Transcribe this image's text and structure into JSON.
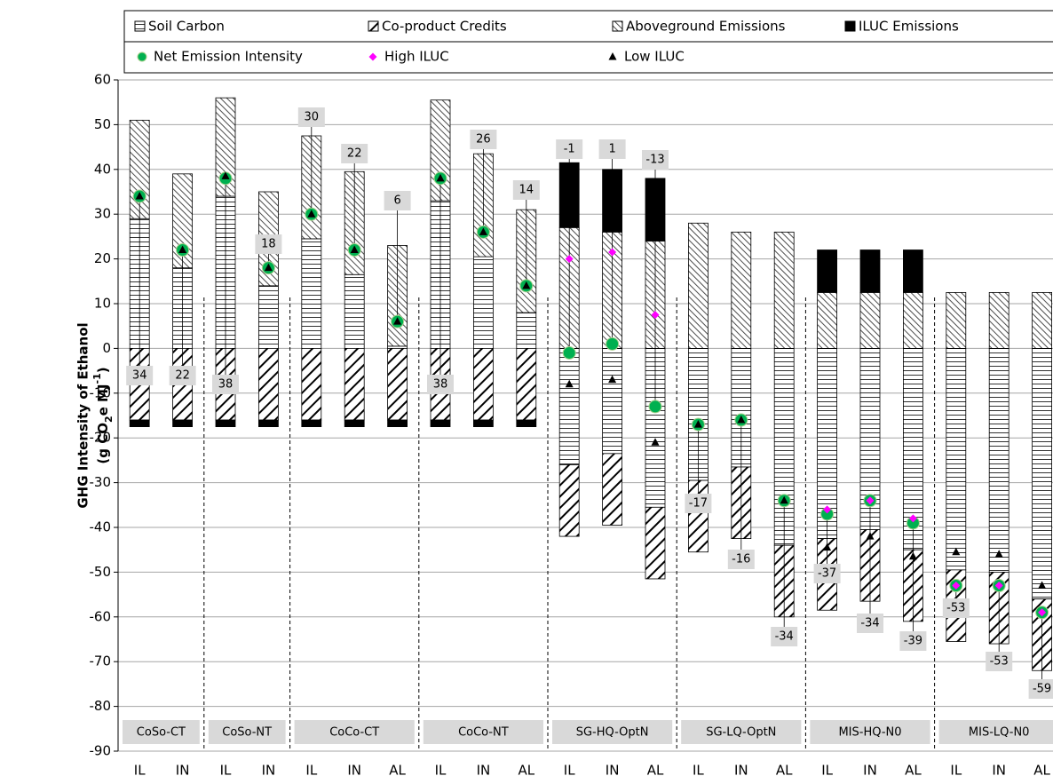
{
  "chart_data": {
    "type": "bar",
    "stacked": true,
    "y_label": {
      "line1": "GHG Intensity of Ethanol",
      "line2": [
        "(g CO",
        "2",
        "e MJ",
        "-1",
        ")"
      ]
    },
    "categories": [
      "IL",
      "IN",
      "IL",
      "IN",
      "IL",
      "IN",
      "AL",
      "IL",
      "IN",
      "AL",
      "IL",
      "IN",
      "AL",
      "IL",
      "IN",
      "AL",
      "IL",
      "IN",
      "AL",
      "IL",
      "IN",
      "AL"
    ],
    "groups": [
      {
        "name": "CoSo-CT",
        "size": 2
      },
      {
        "name": "CoSo-NT",
        "size": 2
      },
      {
        "name": "CoCo-CT",
        "size": 3
      },
      {
        "name": "CoCo-NT",
        "size": 3
      },
      {
        "name": "SG-HQ-OptN",
        "size": 3
      },
      {
        "name": "SG-LQ-OptN",
        "size": 3
      },
      {
        "name": "MIS-HQ-N0",
        "size": 3
      },
      {
        "name": "MIS-LQ-N0",
        "size": 3
      }
    ],
    "series": [
      {
        "name": "Soil Carbon",
        "color": "#000000",
        "pattern": "horizontal",
        "values": [
          29,
          18,
          34,
          14,
          24.5,
          16.5,
          0.5,
          33,
          20.5,
          8,
          -26,
          -23.5,
          -35.5,
          -29.5,
          -26.5,
          -44,
          -42.5,
          -40.5,
          -45,
          -49.5,
          -50,
          -56
        ]
      },
      {
        "name": "Co-product Credits",
        "color": "#000000",
        "pattern": "backslash",
        "values": [
          -16,
          -16,
          -16,
          -16,
          -16,
          -16,
          -16,
          -16,
          -16,
          -16,
          -16,
          -16,
          -16,
          -16,
          -16,
          -16,
          -16,
          -16,
          -16,
          -16,
          -16,
          -16
        ]
      },
      {
        "name": "Aboveground Emissions",
        "color": "#000000",
        "pattern": "slash",
        "values": [
          22,
          21,
          22,
          21,
          23,
          23,
          22.5,
          22.5,
          23,
          23,
          27,
          26,
          24,
          28,
          26,
          26,
          12.5,
          12.5,
          12.5,
          12.5,
          12.5,
          12.5
        ]
      },
      {
        "name": "ILUC Emissions",
        "color": "#000000",
        "pattern": "solid",
        "values": [
          -1.5,
          -1.5,
          -1.5,
          -1.5,
          -1.5,
          -1.5,
          -1.5,
          -1.5,
          -1.5,
          -1.5,
          14.5,
          14,
          14,
          null,
          null,
          null,
          9.5,
          9.5,
          9.5,
          null,
          null,
          null
        ]
      }
    ],
    "markers": [
      {
        "name": "Net Emission Intensity",
        "color": "#00b050",
        "shape": "circle",
        "values": [
          34,
          22,
          38,
          18,
          30,
          22,
          6,
          38,
          26,
          14,
          -1,
          1,
          -13,
          -17,
          -16,
          -34,
          -37,
          -34,
          -39,
          -53,
          -53,
          -59
        ]
      },
      {
        "name": "High ILUC",
        "color": "#ff00ff",
        "shape": "diamond",
        "values": [
          null,
          null,
          null,
          null,
          null,
          null,
          null,
          null,
          null,
          null,
          20,
          21.5,
          7.5,
          null,
          null,
          null,
          -36,
          -34,
          -38,
          -53,
          -53,
          -59
        ]
      },
      {
        "name": "Low ILUC",
        "color": "#000000",
        "shape": "triangle",
        "values": [
          34,
          22,
          38.5,
          18,
          30,
          22,
          6,
          38,
          26,
          14,
          -8,
          -7,
          -21,
          -17,
          -16,
          -34,
          -44.5,
          -42,
          -46.5,
          -45.5,
          -46,
          -53
        ]
      }
    ],
    "ylim": [
      -90,
      60
    ],
    "yticks": [
      -90,
      -80,
      -70,
      -60,
      -50,
      -40,
      -30,
      -20,
      -10,
      0,
      10,
      20,
      30,
      40,
      50,
      60
    ],
    "grid": true
  }
}
